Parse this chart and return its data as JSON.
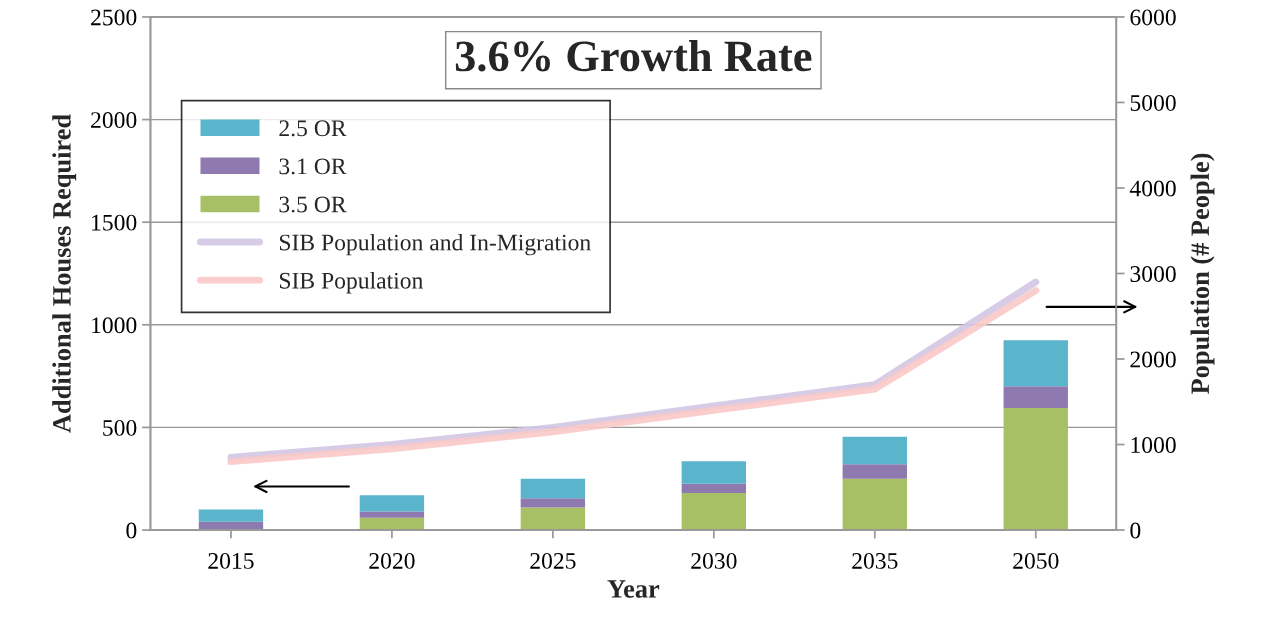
{
  "chart_data": {
    "type": "bar",
    "title": "3.6% Growth Rate",
    "xlabel": "Year",
    "ylabel": "Additional Houses Required",
    "y2label": "Population (# People)",
    "categories": [
      "2015",
      "2020",
      "2025",
      "2030",
      "2035",
      "2050"
    ],
    "series": [
      {
        "name": "3.5 OR",
        "color": "#a8c065",
        "values": [
          5,
          60,
          110,
          180,
          250,
          595
        ]
      },
      {
        "name": "3.1 OR",
        "color": "#8f7ab0",
        "values": [
          35,
          30,
          45,
          45,
          70,
          105
        ]
      },
      {
        "name": "2.5 OR",
        "color": "#5ab5cc",
        "values": [
          60,
          80,
          95,
          110,
          135,
          225
        ]
      },
      {
        "name": "SIB Population and In-Migration",
        "type": "line",
        "axis": "y2",
        "color": "#d3c6e3",
        "values": [
          850,
          1000,
          1200,
          1450,
          1700,
          2900
        ]
      },
      {
        "name": "SIB Population",
        "type": "line",
        "axis": "y2",
        "color": "#f9c9c8",
        "values": [
          800,
          950,
          1150,
          1400,
          1650,
          2800
        ]
      }
    ],
    "stacked": true,
    "ylim": [
      0,
      2500
    ],
    "yticks": [
      0,
      500,
      1000,
      1500,
      2000,
      2500
    ],
    "y2lim": [
      0,
      6000
    ],
    "y2ticks": [
      0,
      1000,
      2000,
      3000,
      4000,
      5000,
      6000
    ],
    "grid": "y",
    "legend": "top left",
    "marker": "none",
    "line_style": "solid"
  }
}
